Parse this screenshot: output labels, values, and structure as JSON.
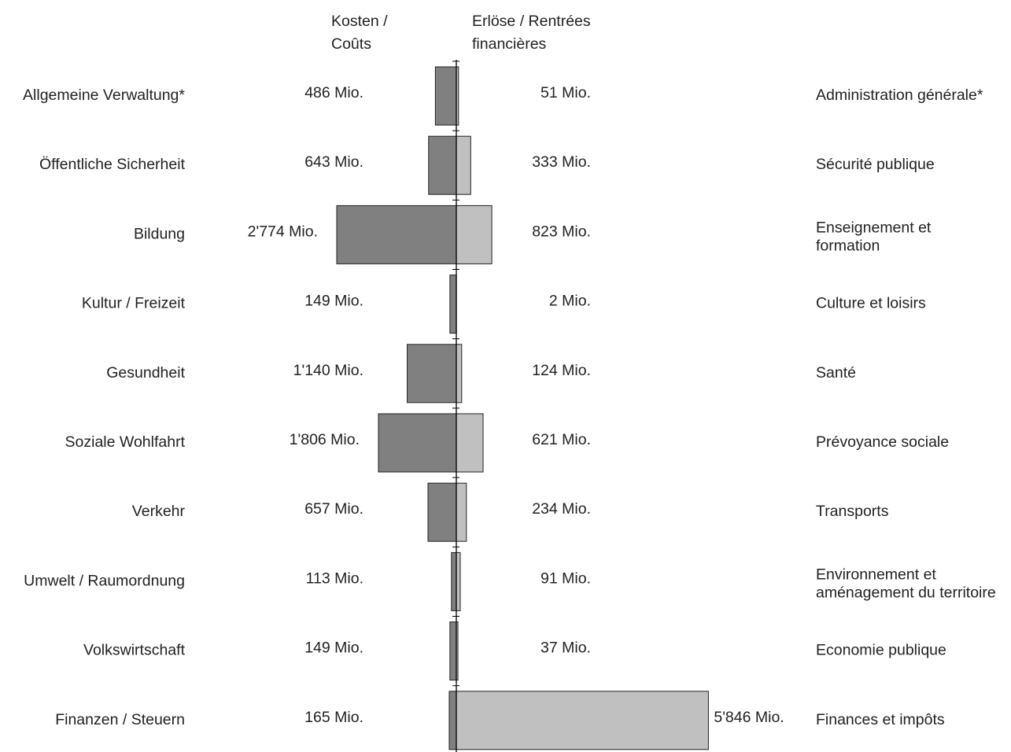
{
  "chart_data": {
    "type": "bar",
    "orientation": "horizontal-diverging",
    "left_header": [
      "Kosten /",
      "Coûts"
    ],
    "right_header": [
      "Erlöse / Rentrées",
      "financières"
    ],
    "units": "Mio.",
    "colors": {
      "costs": "#808080",
      "revenues": "#c0c0c0",
      "outline": "#222222",
      "axis": "#000000"
    },
    "grid": false,
    "rows": [
      {
        "label_de": "Allgemeine Verwaltung*",
        "label_fr": [
          "Administration générale*"
        ],
        "cost": 486,
        "revenue": 51,
        "cost_label": "486 Mio.",
        "revenue_label": "51 Mio."
      },
      {
        "label_de": "Öffentliche Sicherheit",
        "label_fr": [
          "Sécurité publique"
        ],
        "cost": 643,
        "revenue": 333,
        "cost_label": "643 Mio.",
        "revenue_label": "333 Mio."
      },
      {
        "label_de": "Bildung",
        "label_fr": [
          "Enseignement et",
          "formation"
        ],
        "cost": 2774,
        "revenue": 823,
        "cost_label": "2'774 Mio.",
        "revenue_label": "823 Mio."
      },
      {
        "label_de": "Kultur / Freizeit",
        "label_fr": [
          "Culture et loisirs"
        ],
        "cost": 149,
        "revenue": 2,
        "cost_label": "149 Mio.",
        "revenue_label": "2 Mio."
      },
      {
        "label_de": "Gesundheit",
        "label_fr": [
          "Santé"
        ],
        "cost": 1140,
        "revenue": 124,
        "cost_label": "1'140 Mio.",
        "revenue_label": "124 Mio."
      },
      {
        "label_de": "Soziale Wohlfahrt",
        "label_fr": [
          "Prévoyance sociale"
        ],
        "cost": 1806,
        "revenue": 621,
        "cost_label": "1'806 Mio.",
        "revenue_label": "621 Mio."
      },
      {
        "label_de": "Verkehr",
        "label_fr": [
          "Transports"
        ],
        "cost": 657,
        "revenue": 234,
        "cost_label": "657 Mio.",
        "revenue_label": "234 Mio."
      },
      {
        "label_de": "Umwelt / Raumordnung",
        "label_fr": [
          "Environnement et",
          "aménagement du territoire"
        ],
        "cost": 113,
        "revenue": 91,
        "cost_label": "113 Mio.",
        "revenue_label": "91 Mio."
      },
      {
        "label_de": "Volkswirtschaft",
        "label_fr": [
          "Economie publique"
        ],
        "cost": 149,
        "revenue": 37,
        "cost_label": "149 Mio.",
        "revenue_label": "37 Mio."
      },
      {
        "label_de": "Finanzen / Steuern",
        "label_fr": [
          "Finances et impôts"
        ],
        "cost": 165,
        "revenue": 5846,
        "cost_label": "165 Mio.",
        "revenue_label": "5'846 Mio."
      }
    ]
  }
}
